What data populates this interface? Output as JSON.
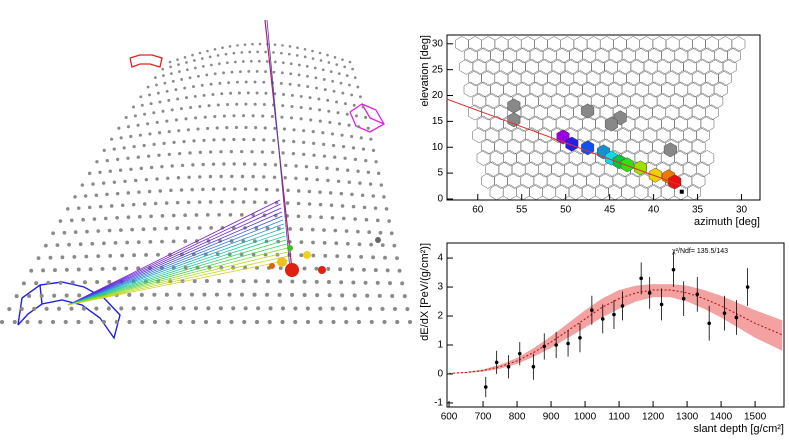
{
  "chart_data": [
    {
      "type": "hexmap",
      "x_label": "azimuth  [deg]",
      "y_label": "elevation [deg]",
      "xlim": [
        63.5,
        27.9
      ],
      "ylim": [
        -0.2,
        31.7
      ],
      "xticks": [
        60,
        55,
        50,
        45,
        40,
        35,
        30
      ],
      "yticks": [
        0,
        5,
        10,
        15,
        20,
        25,
        30
      ],
      "x": [
        50.3,
        49.3,
        47.5,
        45.7,
        44.8,
        43.9,
        43.0,
        41.5,
        39.8,
        38.3,
        37.6,
        55.9,
        55.9,
        47.5,
        43.8,
        44.8,
        38.1
      ],
      "values": [
        12.0,
        10.6,
        9.9,
        9.1,
        7.9,
        7.2,
        6.6,
        6.0,
        4.6,
        4.3,
        3.3,
        18.0,
        15.3,
        17.0,
        15.7,
        14.5,
        9.5
      ],
      "colors": [
        "#9b00e0",
        "#2a1ce8",
        "#1050f0",
        "#1590d0",
        "#10d8e8",
        "#10c040",
        "#30e010",
        "#a0e000",
        "#f0d000",
        "#f07800",
        "#e81010",
        "#888888",
        "#888888",
        "#888888",
        "#888888",
        "#888888",
        "#888888"
      ],
      "track": {
        "x": [
          63.5,
          37.0
        ],
        "y": [
          19.3,
          2.7
        ],
        "color": "#e03030"
      },
      "core": {
        "x": 36.8,
        "y": 1.4
      }
    },
    {
      "type": "profile",
      "x_label": "slant depth [g/cm²]",
      "y_label": "dE/dX [PeV/(g/cm²)]",
      "annotation": "χ²/Ndf=  135.5/143",
      "xlim": [
        594,
        1585
      ],
      "ylim": [
        -1.14,
        4.52
      ],
      "xticks": [
        600,
        700,
        800,
        900,
        1000,
        1100,
        1200,
        1300,
        1400,
        1500
      ],
      "yticks": [
        -1,
        0,
        1,
        2,
        3,
        4
      ],
      "x": [
        708,
        740,
        775,
        808,
        848,
        880,
        915,
        950,
        985,
        1020,
        1052,
        1085,
        1110,
        1165,
        1190,
        1225,
        1260,
        1290,
        1330,
        1365,
        1410,
        1445,
        1478
      ],
      "values": [
        -0.45,
        0.4,
        0.25,
        0.7,
        0.25,
        0.95,
        1.0,
        1.05,
        1.25,
        2.2,
        1.9,
        2.05,
        2.35,
        3.3,
        2.8,
        2.4,
        3.6,
        2.6,
        2.75,
        1.75,
        2.1,
        1.95,
        3.0
      ],
      "errors": [
        0.35,
        0.4,
        0.4,
        0.4,
        0.45,
        0.45,
        0.45,
        0.45,
        0.5,
        0.5,
        0.5,
        0.5,
        0.5,
        0.55,
        0.55,
        0.55,
        0.6,
        0.6,
        0.6,
        0.6,
        0.6,
        0.6,
        0.65
      ],
      "fit": {
        "color": "#b01010",
        "band_color": "#f08a8a",
        "x": [
          600,
          650,
          700,
          750,
          800,
          850,
          900,
          950,
          1000,
          1050,
          1100,
          1150,
          1200,
          1250,
          1300,
          1350,
          1400,
          1450,
          1500,
          1580
        ],
        "values": [
          0.02,
          0.05,
          0.12,
          0.25,
          0.45,
          0.75,
          1.1,
          1.5,
          1.9,
          2.3,
          2.6,
          2.8,
          2.9,
          2.9,
          2.8,
          2.6,
          2.35,
          2.05,
          1.75,
          1.35
        ],
        "lower": [
          0.01,
          0.03,
          0.08,
          0.18,
          0.35,
          0.6,
          0.9,
          1.25,
          1.6,
          1.95,
          2.25,
          2.5,
          2.65,
          2.65,
          2.5,
          2.25,
          1.95,
          1.6,
          1.25,
          0.8
        ],
        "upper": [
          0.03,
          0.07,
          0.16,
          0.32,
          0.55,
          0.9,
          1.3,
          1.75,
          2.2,
          2.6,
          2.9,
          3.05,
          3.1,
          3.1,
          3.05,
          2.9,
          2.7,
          2.45,
          2.2,
          1.85
        ]
      }
    }
  ]
}
